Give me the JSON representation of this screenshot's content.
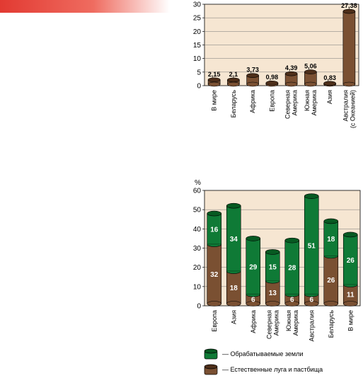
{
  "colors": {
    "banner": "#e23a32",
    "cultivated": "#0f7a36",
    "cultivated_dark": "#075a22",
    "pasture": "#7a5032",
    "pasture_dark": "#4e2f1a",
    "bar1": "#7a5032",
    "plot_bg": "#f6e6d2"
  },
  "chart_data": [
    {
      "type": "bar",
      "title": "",
      "xlabel": "",
      "ylabel": "",
      "ylim": [
        0,
        30
      ],
      "yticks": [
        "0",
        "5",
        "10",
        "15",
        "20",
        "25",
        "30"
      ],
      "categories": [
        "В мире",
        "Беларусь",
        "Африка",
        "Европа",
        "Северная Америка",
        "Южная Америка",
        "Азия",
        "Австралия (с Океанией)"
      ],
      "values": [
        2.15,
        2.1,
        3.73,
        0.98,
        4.39,
        5.06,
        0.83,
        27.38
      ],
      "value_labels": [
        "2,15",
        "2,1",
        "3,73",
        "0,98",
        "4,39",
        "5,06",
        "0,83",
        "27,38"
      ],
      "grid": true
    },
    {
      "type": "bar",
      "stacked": true,
      "title": "",
      "xlabel": "",
      "ylabel": "%",
      "ylim": [
        0,
        60
      ],
      "yticks": [
        "0",
        "10",
        "20",
        "30",
        "40",
        "50",
        "60"
      ],
      "categories": [
        "Европа",
        "Азия",
        "Африка",
        "Северная Америка",
        "Южная Америка",
        "Австралия",
        "Беларусь",
        "В мире"
      ],
      "series": [
        {
          "name": "— Естественные луга и пастбища",
          "values": [
            32,
            18,
            6,
            13,
            6,
            6,
            26,
            11
          ],
          "labels": [
            "32",
            "18",
            "6",
            "13",
            "6",
            "6",
            "26",
            "11"
          ]
        },
        {
          "name": "— Обрабатываемые земли",
          "values": [
            16,
            34,
            29,
            15,
            28,
            51,
            18,
            26
          ],
          "labels": [
            "16",
            "34",
            "29",
            "15",
            "28",
            "51",
            "18",
            "26"
          ]
        }
      ],
      "legend_position": "bottom",
      "grid": true
    }
  ]
}
